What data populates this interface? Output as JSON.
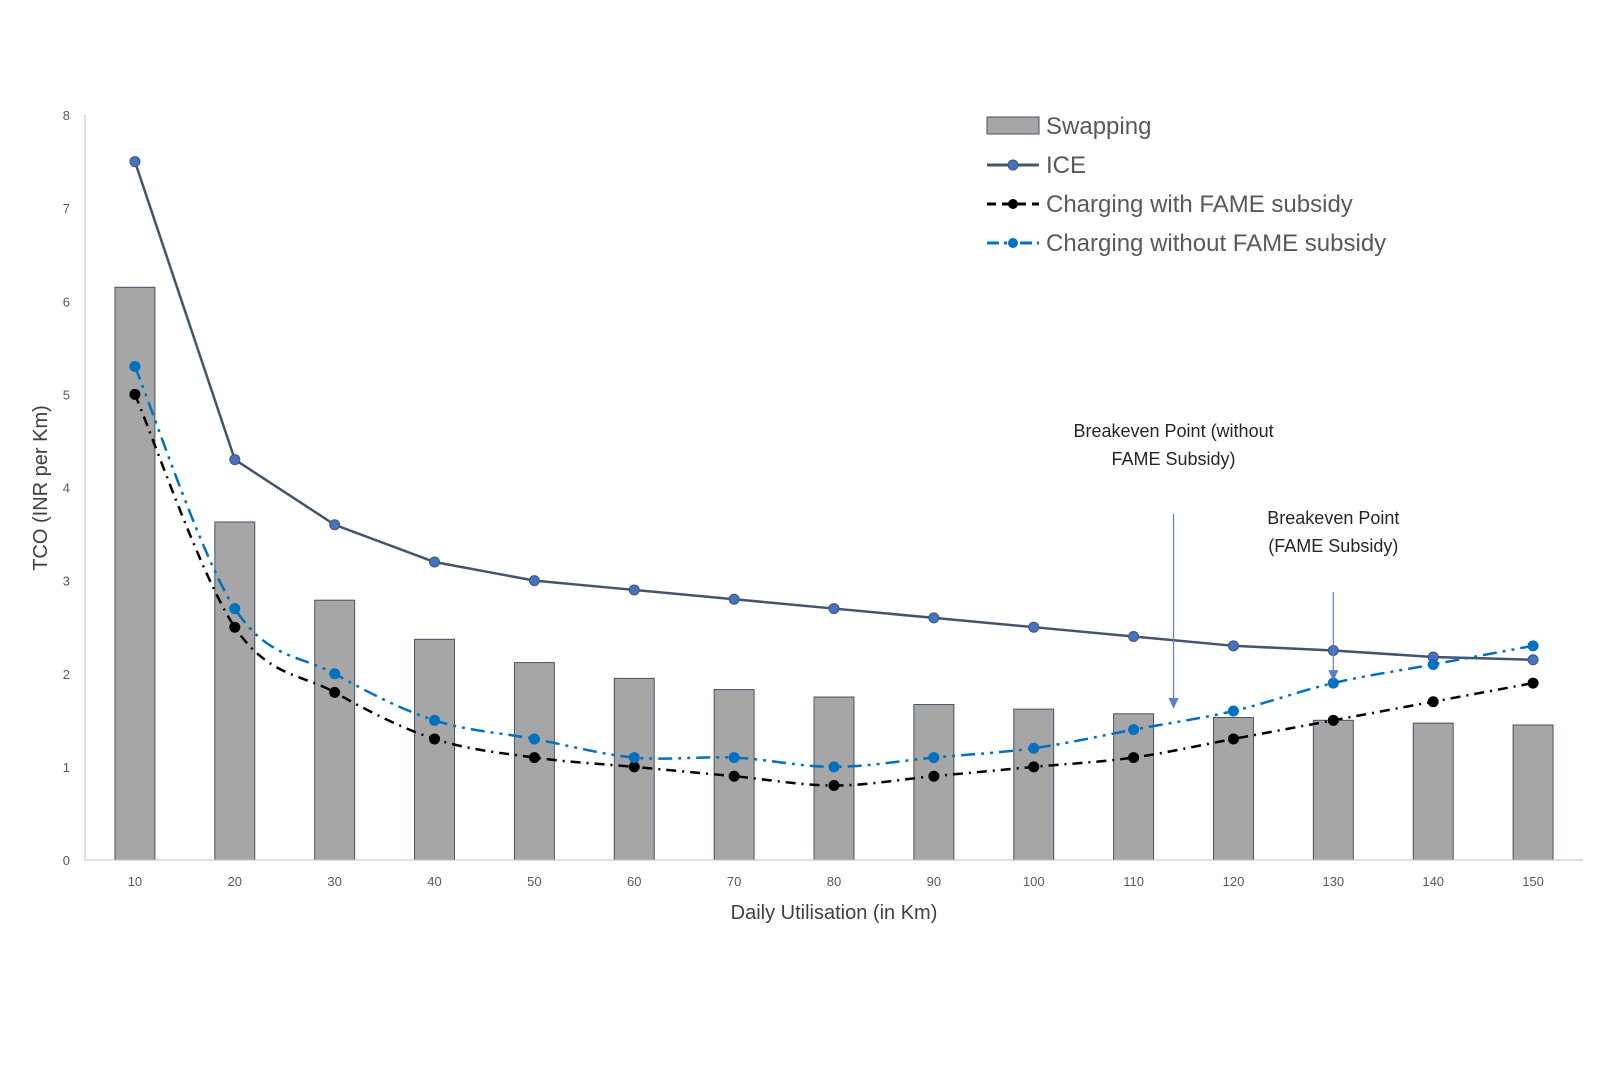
{
  "chart_data": {
    "type": "bar",
    "title": "",
    "xlabel": "Daily Utilisation (in Km)",
    "ylabel": "TCO (INR per Km)",
    "ylim": [
      0,
      8
    ],
    "yticks": [
      "0",
      "1",
      "2",
      "3",
      "4",
      "5",
      "6",
      "7",
      "8"
    ],
    "categories": [
      "10",
      "20",
      "30",
      "40",
      "50",
      "60",
      "70",
      "80",
      "90",
      "100",
      "110",
      "120",
      "130",
      "140",
      "150"
    ],
    "series": [
      {
        "name": "Swapping",
        "kind": "bar",
        "color": "#a6a6a6",
        "values": [
          6.15,
          3.63,
          2.79,
          2.37,
          2.12,
          1.95,
          1.83,
          1.75,
          1.67,
          1.62,
          1.57,
          1.53,
          1.5,
          1.47,
          1.45
        ]
      },
      {
        "name": "ICE",
        "kind": "line",
        "style": "solid",
        "color": "#44546a",
        "marker_color": "#4472c4",
        "values": [
          7.5,
          4.3,
          3.6,
          3.2,
          3.0,
          2.9,
          2.8,
          2.7,
          2.6,
          2.5,
          2.4,
          2.3,
          2.25,
          2.18,
          2.15
        ]
      },
      {
        "name": "Charging with FAME subsidy",
        "kind": "line",
        "style": "dashdot",
        "color": "#000000",
        "marker_color": "#000000",
        "values": [
          5.0,
          2.5,
          1.8,
          1.3,
          1.1,
          1.0,
          0.9,
          0.8,
          0.9,
          1.0,
          1.1,
          1.3,
          1.5,
          1.7,
          1.9
        ]
      },
      {
        "name": "Charging without FAME subsidy",
        "kind": "line",
        "style": "dashdotdot",
        "color": "#0070c0",
        "marker_color": "#0070c0",
        "values": [
          5.3,
          2.7,
          2.0,
          1.5,
          1.3,
          1.1,
          1.1,
          1.0,
          1.1,
          1.2,
          1.4,
          1.6,
          1.9,
          2.1,
          2.3
        ]
      }
    ],
    "legend": "top-right",
    "grid": false,
    "annotations": [
      {
        "lines": [
          "Breakeven Point (without",
          "FAME Subsidy)"
        ],
        "x": 114,
        "y": 1.6
      },
      {
        "lines": [
          "Breakeven Point",
          "(FAME Subsidy)"
        ],
        "x": 130,
        "y": 1.9
      }
    ]
  }
}
